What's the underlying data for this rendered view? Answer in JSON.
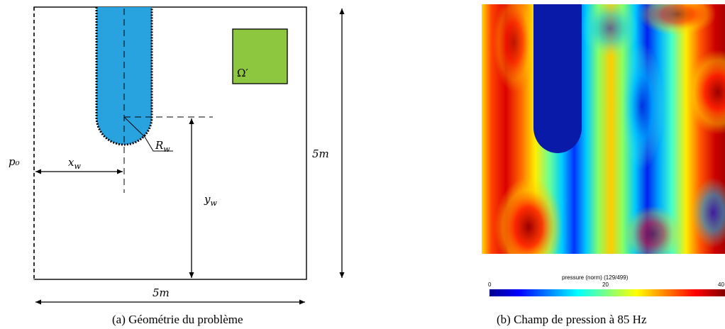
{
  "left_figure": {
    "caption": "(a) Géométrie du problème",
    "labels": {
      "p0": "p₀",
      "xw": "xw",
      "yw": "yw",
      "rw": "Rw",
      "omega": "Ω′",
      "width": "5m",
      "height": "5m"
    },
    "colors": {
      "waveguide": "#29a3e0",
      "omega_region": "#8dc63f"
    }
  },
  "right_figure": {
    "caption": "(b) Champ de pression à 85 Hz",
    "colorbar": {
      "title": "pressure (norm) (129/499)",
      "tick_min": "0",
      "tick_mid": "20",
      "tick_max": "40"
    }
  }
}
